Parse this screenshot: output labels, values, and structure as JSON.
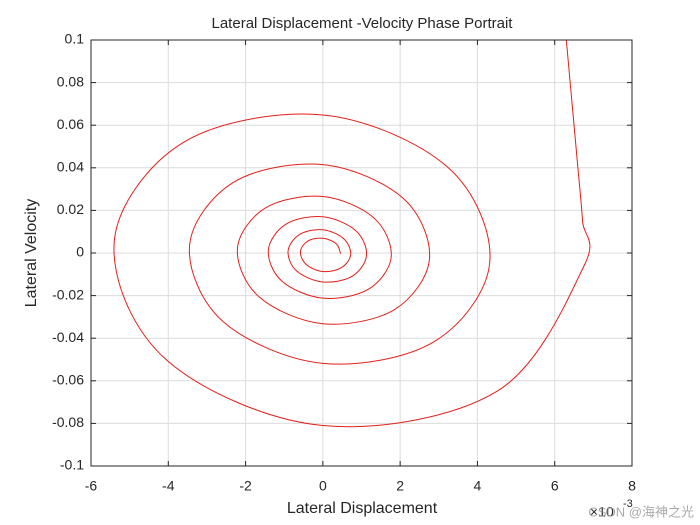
{
  "chart_data": {
    "type": "line",
    "title": "Lateral Displacement -Velocity Phase Portrait",
    "xlabel": "Lateral Displacement",
    "ylabel": "Lateral Velocity",
    "x_multiplier": "×10",
    "x_exponent": "-3",
    "watermark": "CSDN @海神之光",
    "color": "#e0201b",
    "grid": true,
    "xlim": [
      -6,
      8
    ],
    "xticks": [
      -6,
      -4,
      -2,
      0,
      2,
      4,
      6,
      8
    ],
    "ylim": [
      -0.1,
      0.1
    ],
    "yticks": [
      -0.1,
      -0.08,
      -0.06,
      -0.04,
      -0.02,
      0,
      0.02,
      0.04,
      0.06,
      0.08,
      0.1
    ],
    "x": [
      6.3,
      6.45,
      6.6,
      6.72,
      6.75,
      4.51,
      0,
      -4.04,
      -5.4,
      -3.61,
      0,
      3.23,
      4.32,
      2.89,
      0,
      -2.58,
      -3.45,
      -2.31,
      0,
      2.07,
      2.76,
      1.85,
      0,
      -1.65,
      -2.21,
      -1.48,
      0,
      1.32,
      1.77,
      1.18,
      0,
      -1.06,
      -1.41,
      -0.95,
      0,
      0.85,
      1.13,
      0.76,
      0,
      -0.68,
      -0.9,
      -0.6,
      0,
      0.54,
      0.72,
      0.48,
      0,
      -0.43,
      -0.58,
      -0.39,
      0,
      0.35,
      0.46
    ],
    "values": [
      0.1,
      0.07,
      0.04,
      0.015,
      -0.0064,
      -0.0649,
      -0.081,
      -0.0503,
      0.0051,
      0.0519,
      0.0648,
      0.0403,
      -0.0041,
      -0.0415,
      -0.0518,
      -0.0322,
      0.0033,
      0.0332,
      0.0415,
      0.0258,
      -0.0026,
      -0.0266,
      -0.0332,
      -0.0206,
      0.0021,
      0.0212,
      0.0265,
      0.0165,
      -0.0017,
      -0.017,
      -0.0212,
      -0.0132,
      0.0013,
      0.0136,
      0.017,
      0.0105,
      -0.0011,
      -0.0109,
      -0.0136,
      -0.0084,
      0.0009,
      0.0087,
      0.0109,
      0.0067,
      -0.0007,
      -0.0069,
      -0.0087,
      -0.0054,
      0.0006,
      0.0056,
      0.0069,
      0.0043,
      -0.0004
    ]
  }
}
